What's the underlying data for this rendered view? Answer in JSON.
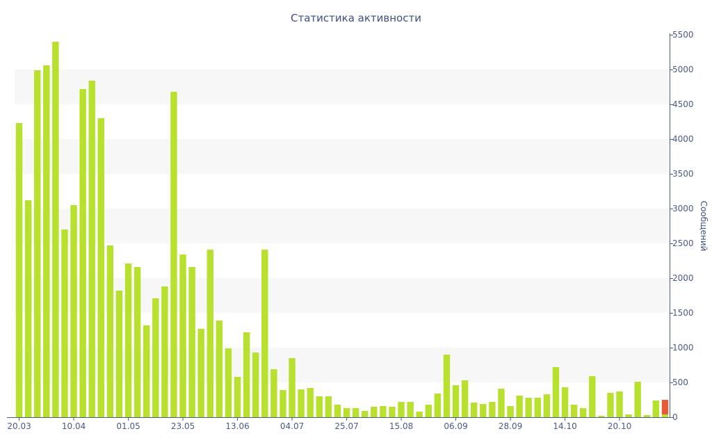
{
  "chart_data": {
    "type": "bar",
    "title": "Статистика активности",
    "ylabel": "Сообщений",
    "ylim": [
      0,
      5500
    ],
    "y_ticks": [
      0,
      500,
      1000,
      1500,
      2000,
      2500,
      3000,
      3500,
      4000,
      4500,
      5000,
      5500
    ],
    "x_tick_labels": [
      "20.03",
      "10.04",
      "01.05",
      "23.05",
      "13.06",
      "04.07",
      "25.07",
      "15.08",
      "06.09",
      "28.09",
      "14.10",
      "20.10"
    ],
    "x_tick_bar_index": [
      0,
      6,
      12,
      18,
      24,
      30,
      36,
      42,
      48,
      54,
      60,
      66
    ],
    "grid": "alternating horizontal bands",
    "y_axis_position": "right",
    "series": [
      {
        "color": "#b8e02e",
        "values": [
          4230,
          3120,
          4990,
          5060,
          5400,
          2700,
          3050,
          4720,
          4840,
          4300,
          2470,
          1820,
          2210,
          2160,
          1320,
          1710,
          1880,
          4680,
          2340,
          2160,
          1270,
          2410,
          1390,
          990,
          580,
          1220,
          930,
          2410,
          690,
          390,
          850,
          400,
          420,
          300,
          300,
          180,
          130,
          130,
          90,
          150,
          160,
          150,
          220,
          220,
          80,
          180,
          340,
          900,
          460,
          530,
          210,
          190,
          220,
          410,
          160,
          310,
          280,
          280,
          330,
          720,
          430,
          180,
          130,
          590,
          20,
          350,
          370,
          40,
          510,
          30,
          240,
          40
        ]
      },
      {
        "color": "#e45b35",
        "values": [
          0,
          0,
          0,
          0,
          0,
          0,
          0,
          0,
          0,
          0,
          0,
          0,
          0,
          0,
          0,
          0,
          0,
          0,
          0,
          0,
          0,
          0,
          0,
          0,
          0,
          0,
          0,
          0,
          0,
          0,
          0,
          0,
          0,
          0,
          0,
          0,
          0,
          0,
          0,
          0,
          0,
          0,
          0,
          0,
          0,
          0,
          0,
          0,
          0,
          0,
          0,
          0,
          0,
          0,
          0,
          0,
          0,
          0,
          0,
          0,
          0,
          0,
          0,
          0,
          0,
          0,
          0,
          0,
          0,
          0,
          0,
          210
        ]
      }
    ],
    "colors": {
      "band": "#f7f7f7",
      "axis": "#4a5a8a",
      "text": "#3d4f86"
    }
  }
}
